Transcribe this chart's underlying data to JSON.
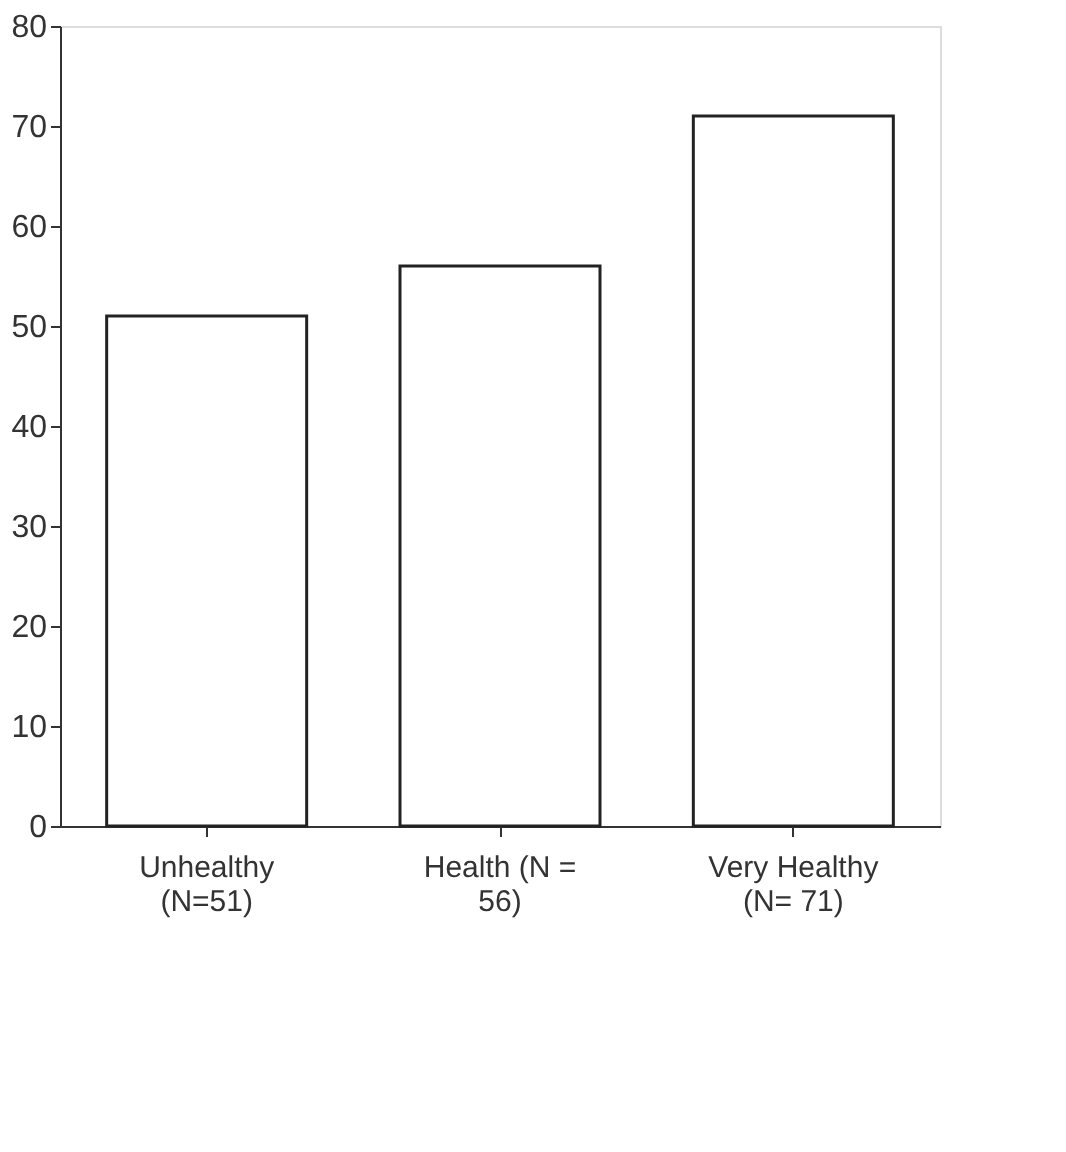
{
  "chart_data": {
    "type": "bar",
    "categories": [
      "Unhealthy (N=51)",
      "Health (N = 56)",
      "Very Healthy (N= 71)"
    ],
    "values": [
      51,
      56,
      71
    ],
    "color": "#ffffff",
    "ylim": [
      0,
      80
    ],
    "yticks": [
      0,
      10,
      20,
      30,
      40,
      50,
      60,
      70,
      80
    ],
    "grid": false
  }
}
